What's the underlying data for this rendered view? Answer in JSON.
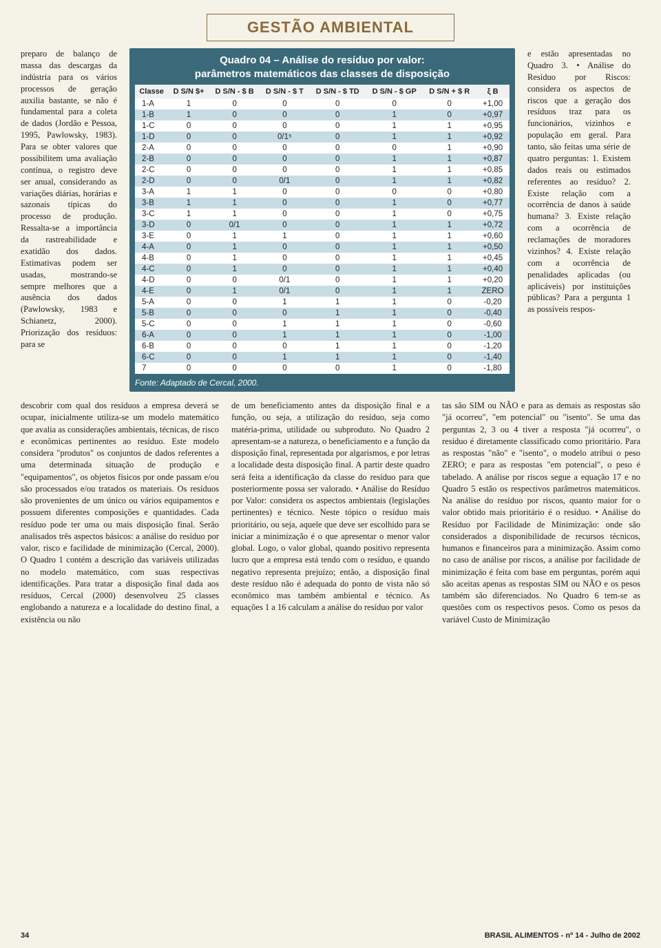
{
  "header": {
    "title": "GESTÃO AMBIENTAL"
  },
  "colors": {
    "page_bg": "#f5f2e8",
    "header_border": "#8a6a3a",
    "header_text": "#8a6a3a",
    "table_bg": "#3a6a7a",
    "row_alt": "#c8dce4",
    "row_base": "#ffffff"
  },
  "left_col_text": "preparo de balanço de massa das descargas da indústria para os vários processos de geração auxilia bastante, se não é fundamental para a coleta de dados (Jordão e Pessoa, 1995, Pawlowsky, 1983). Para se obter valores que possibilitem uma avaliação contínua, o registro deve ser anual, considerando as variações diárias, horárias e sazonais típicas do processo de produção. Ressalta-se a importância da rastreabilidade e exatidão dos dados. Estimativas podem ser usadas, mostrando-se sempre melhores que a ausência dos dados (Pawlowsky, 1983 e Schianetz, 2000). Priorização dos resíduos: para se",
  "right_col_text": "e estão apresentadas no Quadro 3. • Análise do Resíduo por Riscos: considera os aspectos de riscos que a geração dos resíduos traz para os funcionários, vizinhos e população em geral. Para tanto, são feitas uma série de quatro perguntas: 1. Existem dados reais ou estimados referentes ao resíduo? 2. Existe relação com a ocorrência de danos à saúde humana? 3. Existe relação com a ocorrência de reclamações de moradores vizinhos? 4. Existe relação com a ocorrência de penalidades aplicadas (ou aplicáveis) por instituições públicas? Para a pergunta 1 as possíveis respos-",
  "table": {
    "title_line1": "Quadro 04 – Análise do resíduo por valor:",
    "title_line2": "parâmetros matemáticos das classes de disposição",
    "source": "Fonte: Adaptado de Cercal, 2000.",
    "headers": [
      "Classe",
      "D S/N $+",
      "D S/N - $ B",
      "D S/N - $ T",
      "D S/N - $ TD",
      "D S/N - $ GP",
      "D S/N + $ R",
      "ξ B"
    ],
    "rows": [
      [
        "1-A",
        "1",
        "0",
        "0",
        "0",
        "0",
        "0",
        "+1,00"
      ],
      [
        "1-B",
        "1",
        "0",
        "0",
        "0",
        "1",
        "0",
        "+0,97"
      ],
      [
        "1-C",
        "0",
        "0",
        "0",
        "0",
        "1",
        "1",
        "+0,95"
      ],
      [
        "1-D",
        "0",
        "0",
        "0/1⁵",
        "0",
        "1",
        "1",
        "+0,92"
      ],
      [
        "2-A",
        "0",
        "0",
        "0",
        "0",
        "0",
        "1",
        "+0,90"
      ],
      [
        "2-B",
        "0",
        "0",
        "0",
        "0",
        "1",
        "1",
        "+0,87"
      ],
      [
        "2-C",
        "0",
        "0",
        "0",
        "0",
        "1",
        "1",
        "+0,85"
      ],
      [
        "2-D",
        "0",
        "0",
        "0/1",
        "0",
        "1",
        "1",
        "+0,82"
      ],
      [
        "3-A",
        "1",
        "1",
        "0",
        "0",
        "0",
        "0",
        "+0,80"
      ],
      [
        "3-B",
        "1",
        "1",
        "0",
        "0",
        "1",
        "0",
        "+0,77"
      ],
      [
        "3-C",
        "1",
        "1",
        "0",
        "0",
        "1",
        "0",
        "+0,75"
      ],
      [
        "3-D",
        "0",
        "0/1",
        "0",
        "0",
        "1",
        "1",
        "+0,72"
      ],
      [
        "3-E",
        "0",
        "1",
        "1",
        "0",
        "1",
        "1",
        "+0,60"
      ],
      [
        "4-A",
        "0",
        "1",
        "0",
        "0",
        "1",
        "1",
        "+0,50"
      ],
      [
        "4-B",
        "0",
        "1",
        "0",
        "0",
        "1",
        "1",
        "+0,45"
      ],
      [
        "4-C",
        "0",
        "1",
        "0",
        "0",
        "1",
        "1",
        "+0,40"
      ],
      [
        "4-D",
        "0",
        "0",
        "0/1",
        "0",
        "1",
        "1",
        "+0,20"
      ],
      [
        "4-E",
        "0",
        "1",
        "0/1",
        "0",
        "1",
        "1",
        "ZERO"
      ],
      [
        "5-A",
        "0",
        "0",
        "1",
        "1",
        "1",
        "0",
        "-0,20"
      ],
      [
        "5-B",
        "0",
        "0",
        "0",
        "1",
        "1",
        "0",
        "-0,40"
      ],
      [
        "5-C",
        "0",
        "0",
        "1",
        "1",
        "1",
        "0",
        "-0,60"
      ],
      [
        "6-A",
        "0",
        "0",
        "1",
        "1",
        "1",
        "0",
        "-1,00"
      ],
      [
        "6-B",
        "0",
        "0",
        "0",
        "1",
        "1",
        "0",
        "-1,20"
      ],
      [
        "6-C",
        "0",
        "0",
        "1",
        "1",
        "1",
        "0",
        "-1,40"
      ],
      [
        "7",
        "0",
        "0",
        "0",
        "0",
        "1",
        "0",
        "-1,80"
      ]
    ]
  },
  "lower": {
    "c1": "descobrir com qual dos resíduos a empresa deverá se ocupar, inicialmente utiliza-se um modelo matemático que avalia as considerações ambientais, técnicas, de risco e econômicas pertinentes ao resíduo. Este modelo considera \"produtos\" os conjuntos de dados referentes a uma determinada situação de produção e \"equipamentos\", os objetos físicos por onde passam e/ou são processados e/ou tratados os materiais. Os resíduos são provenientes de um único ou vários equipamentos e possuem diferentes composições e quantidades. Cada resíduo pode ter uma ou mais disposição final. Serão analisados três aspectos básicos: a análise do resíduo por valor, risco e facilidade de minimização (Cercal, 2000). O Quadro 1 contém a descrição das variáveis utilizadas no modelo matemático, com suas respectivas identificações. Para tratar a disposição final dada aos resíduos, Cercal (2000) desenvolveu 25 classes englobando a natureza e a localidade do destino final, a existência ou não",
    "c2": "de um beneficiamento antes da disposição final e a função, ou seja, a utilização do resíduo, seja como matéria-prima, utilidade ou subproduto. No Quadro 2 apresentam-se a natureza, o beneficiamento e a função da disposição final, representada por algarismos, e por letras a localidade desta disposição final. A partir deste quadro será feita a identificação da classe do resíduo para que posteriormente possa ser valorado. • Análise do Resíduo por Valor: considera os aspectos ambientais (legislações pertinentes) e técnico. Neste tópico o resíduo mais prioritário, ou seja, aquele que deve ser escolhido para se iniciar a minimização é o que apresentar o menor valor global. Logo, o valor global, quando positivo representa lucro que a empresa está tendo com o resíduo, e quando negativo representa prejuízo; então, a disposição final deste resíduo não é adequada do ponto de vista não só econômico mas também ambiental e técnico. As equações 1 a 16 calculam a análise do resíduo por valor",
    "c3": "tas são SIM ou NÃO e para as demais as respostas são \"já ocorreu\", \"em potencial\" ou \"isento\". Se uma das perguntas 2, 3 ou 4 tiver a resposta \"já ocorreu\", o resíduo é diretamente classificado como prioritário. Para as respostas \"não\" e \"isento\", o modelo atribui o peso ZERO; e para as respostas \"em potencial\", o peso é tabelado. A análise por riscos segue a equação 17 e no Quadro 5 estão os respectivos parâmetros matemáticos. Na análise do resíduo por riscos, quanto maior for o valor obtido mais prioritário é o resíduo. • Análise do Resíduo por Facilidade de Minimização: onde são considerados a disponibilidade de recursos técnicos, humanos e financeiros para a minimização. Assim como no caso de análise por riscos, a análise por facilidade de minimização é feita com base em perguntas, porém aqui são aceitas apenas as respostas SIM ou NÃO e os pesos também são diferenciados. No Quadro 6 tem-se as questões com os respectivos pesos. Como os pesos da variável Custo de Minimização"
  },
  "footer": {
    "page": "34",
    "pub": "BRASIL ALIMENTOS - nº 14 - Julho de 2002"
  }
}
